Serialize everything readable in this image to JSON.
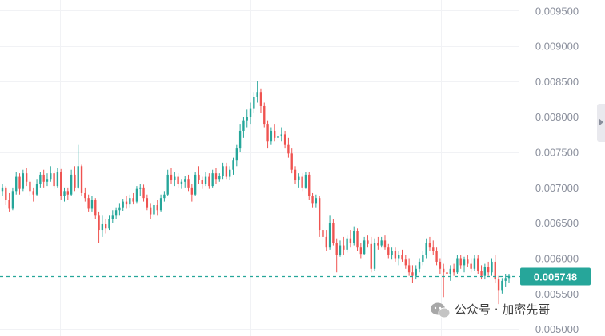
{
  "chart_data": {
    "type": "candlestick",
    "ylim": [
      0.0049,
      0.00965
    ],
    "y_ticks": [
      "0.009500",
      "0.009000",
      "0.008500",
      "0.008000",
      "0.007500",
      "0.007000",
      "0.006500",
      "0.006000",
      "0.005500",
      "0.005000"
    ],
    "last_price": 0.005748,
    "last_price_label": "0.005748",
    "up_color": "#26a69a",
    "down_color": "#ef5350",
    "price_line_color": "#26a69a",
    "grid": true,
    "candles": [
      [
        0.00695,
        0.00705,
        0.00688,
        0.007
      ],
      [
        0.007,
        0.00702,
        0.00675,
        0.00682
      ],
      [
        0.00682,
        0.00692,
        0.00665,
        0.0067
      ],
      [
        0.0067,
        0.007,
        0.00668,
        0.00695
      ],
      [
        0.00695,
        0.00722,
        0.0069,
        0.00715
      ],
      [
        0.00715,
        0.0072,
        0.0069,
        0.00698
      ],
      [
        0.00698,
        0.00725,
        0.00695,
        0.0072
      ],
      [
        0.0072,
        0.00728,
        0.00702,
        0.00708
      ],
      [
        0.00708,
        0.00712,
        0.00688,
        0.00695
      ],
      [
        0.00695,
        0.007,
        0.0068,
        0.0069
      ],
      [
        0.0069,
        0.00712,
        0.00688,
        0.00705
      ],
      [
        0.00705,
        0.00722,
        0.007,
        0.00718
      ],
      [
        0.00718,
        0.00725,
        0.007,
        0.00708
      ],
      [
        0.00708,
        0.0072,
        0.00702,
        0.00712
      ],
      [
        0.00712,
        0.0073,
        0.00708,
        0.0072
      ],
      [
        0.0072,
        0.00724,
        0.00698,
        0.00702
      ],
      [
        0.00702,
        0.00728,
        0.007,
        0.00722
      ],
      [
        0.00722,
        0.00726,
        0.00682,
        0.00688
      ],
      [
        0.00688,
        0.007,
        0.0068,
        0.00695
      ],
      [
        0.00695,
        0.007,
        0.00682,
        0.0069
      ],
      [
        0.0069,
        0.00725,
        0.00688,
        0.00718
      ],
      [
        0.00718,
        0.0073,
        0.00695,
        0.007
      ],
      [
        0.007,
        0.0076,
        0.00698,
        0.0073
      ],
      [
        0.0073,
        0.00732,
        0.00688,
        0.00692
      ],
      [
        0.00692,
        0.007,
        0.0068,
        0.00685
      ],
      [
        0.00685,
        0.0069,
        0.00665,
        0.0067
      ],
      [
        0.0067,
        0.00688,
        0.00665,
        0.00682
      ],
      [
        0.00682,
        0.00685,
        0.00655,
        0.0066
      ],
      [
        0.0066,
        0.00665,
        0.00622,
        0.0064
      ],
      [
        0.0064,
        0.0066,
        0.0063,
        0.00648
      ],
      [
        0.00648,
        0.00655,
        0.00635,
        0.00642
      ],
      [
        0.00642,
        0.0066,
        0.0064,
        0.00655
      ],
      [
        0.00655,
        0.00668,
        0.0065,
        0.0066
      ],
      [
        0.0066,
        0.00672,
        0.00655,
        0.00668
      ],
      [
        0.00668,
        0.00678,
        0.0066,
        0.00672
      ],
      [
        0.00672,
        0.00684,
        0.00666,
        0.0068
      ],
      [
        0.0068,
        0.00688,
        0.0067,
        0.00676
      ],
      [
        0.00676,
        0.0069,
        0.00672,
        0.00685
      ],
      [
        0.00685,
        0.00692,
        0.00676,
        0.0068
      ],
      [
        0.0068,
        0.00702,
        0.00678,
        0.00698
      ],
      [
        0.00698,
        0.00705,
        0.00688,
        0.007
      ],
      [
        0.007,
        0.00704,
        0.0068,
        0.00685
      ],
      [
        0.00685,
        0.0069,
        0.00668,
        0.00672
      ],
      [
        0.00672,
        0.00678,
        0.00655,
        0.00662
      ],
      [
        0.00662,
        0.0068,
        0.00658,
        0.00675
      ],
      [
        0.00675,
        0.00682,
        0.0066,
        0.00668
      ],
      [
        0.00668,
        0.0069,
        0.00665,
        0.00685
      ],
      [
        0.00685,
        0.00695,
        0.0068,
        0.0069
      ],
      [
        0.0069,
        0.00725,
        0.00688,
        0.00718
      ],
      [
        0.00718,
        0.00728,
        0.00705,
        0.0071
      ],
      [
        0.0071,
        0.00722,
        0.00702,
        0.00715
      ],
      [
        0.00715,
        0.0072,
        0.007,
        0.00705
      ],
      [
        0.00705,
        0.00712,
        0.00698,
        0.00708
      ],
      [
        0.00708,
        0.00716,
        0.007,
        0.00712
      ],
      [
        0.00712,
        0.00718,
        0.00695,
        0.007
      ],
      [
        0.007,
        0.00705,
        0.0068,
        0.0069
      ],
      [
        0.0069,
        0.00722,
        0.00688,
        0.00718
      ],
      [
        0.00718,
        0.0073,
        0.00705,
        0.0071
      ],
      [
        0.0071,
        0.00715,
        0.00698,
        0.00705
      ],
      [
        0.00705,
        0.00722,
        0.00702,
        0.00715
      ],
      [
        0.00715,
        0.0072,
        0.00698,
        0.00702
      ],
      [
        0.00702,
        0.00725,
        0.007,
        0.0072
      ],
      [
        0.0072,
        0.00728,
        0.00705,
        0.00712
      ],
      [
        0.00712,
        0.0072,
        0.00708,
        0.00716
      ],
      [
        0.00716,
        0.00735,
        0.00712,
        0.0073
      ],
      [
        0.0073,
        0.00735,
        0.00712,
        0.00715
      ],
      [
        0.00715,
        0.0073,
        0.0071,
        0.00725
      ],
      [
        0.00725,
        0.00742,
        0.00718,
        0.00738
      ],
      [
        0.00738,
        0.0076,
        0.0073,
        0.00755
      ],
      [
        0.00755,
        0.0079,
        0.0075,
        0.0078
      ],
      [
        0.0078,
        0.008,
        0.0077,
        0.00795
      ],
      [
        0.00795,
        0.0081,
        0.00785,
        0.008
      ],
      [
        0.008,
        0.0082,
        0.0079,
        0.00812
      ],
      [
        0.00812,
        0.00835,
        0.00805,
        0.00828
      ],
      [
        0.00828,
        0.0085,
        0.0082,
        0.00835
      ],
      [
        0.00835,
        0.0084,
        0.00805,
        0.00815
      ],
      [
        0.00815,
        0.0082,
        0.00785,
        0.0079
      ],
      [
        0.0079,
        0.00795,
        0.00755,
        0.00765
      ],
      [
        0.00765,
        0.00785,
        0.0076,
        0.0078
      ],
      [
        0.0078,
        0.0079,
        0.00765,
        0.0077
      ],
      [
        0.0077,
        0.0078,
        0.00755,
        0.00772
      ],
      [
        0.00772,
        0.00785,
        0.00765,
        0.00775
      ],
      [
        0.00775,
        0.0078,
        0.00755,
        0.0076
      ],
      [
        0.0076,
        0.0077,
        0.00742,
        0.00748
      ],
      [
        0.00748,
        0.00755,
        0.0072,
        0.00725
      ],
      [
        0.00725,
        0.0073,
        0.00705,
        0.0071
      ],
      [
        0.0071,
        0.0072,
        0.007,
        0.00715
      ],
      [
        0.00715,
        0.0072,
        0.00695,
        0.007
      ],
      [
        0.007,
        0.00722,
        0.00698,
        0.00718
      ],
      [
        0.00718,
        0.00722,
        0.00682,
        0.00688
      ],
      [
        0.00688,
        0.00692,
        0.00672,
        0.00678
      ],
      [
        0.00678,
        0.0069,
        0.00672,
        0.00685
      ],
      [
        0.00685,
        0.00688,
        0.0063,
        0.0064
      ],
      [
        0.0064,
        0.00648,
        0.0062,
        0.0063
      ],
      [
        0.0063,
        0.0064,
        0.0061,
        0.00615
      ],
      [
        0.00615,
        0.0066,
        0.00612,
        0.0065
      ],
      [
        0.0065,
        0.00655,
        0.00618,
        0.00622
      ],
      [
        0.00622,
        0.00628,
        0.0058,
        0.00605
      ],
      [
        0.00605,
        0.00625,
        0.00602,
        0.00618
      ],
      [
        0.00618,
        0.0063,
        0.00605,
        0.00612
      ],
      [
        0.00612,
        0.00632,
        0.00608,
        0.00628
      ],
      [
        0.00628,
        0.0064,
        0.00615,
        0.00622
      ],
      [
        0.00622,
        0.00645,
        0.00618,
        0.00638
      ],
      [
        0.00638,
        0.00642,
        0.0061,
        0.00615
      ],
      [
        0.00615,
        0.00622,
        0.006,
        0.00606
      ],
      [
        0.00606,
        0.0063,
        0.00605,
        0.00625
      ],
      [
        0.00625,
        0.00632,
        0.00615,
        0.0062
      ],
      [
        0.0062,
        0.0063,
        0.0058,
        0.00585
      ],
      [
        0.00585,
        0.00628,
        0.00582,
        0.00622
      ],
      [
        0.00622,
        0.0063,
        0.00612,
        0.00618
      ],
      [
        0.00618,
        0.0063,
        0.00615,
        0.00625
      ],
      [
        0.00625,
        0.00632,
        0.00612,
        0.00615
      ],
      [
        0.00615,
        0.0062,
        0.006,
        0.00605
      ],
      [
        0.00605,
        0.00615,
        0.00598,
        0.0061
      ],
      [
        0.0061,
        0.00615,
        0.00595,
        0.006
      ],
      [
        0.006,
        0.0061,
        0.0059,
        0.00605
      ],
      [
        0.00605,
        0.00612,
        0.00595,
        0.00598
      ],
      [
        0.00598,
        0.00605,
        0.00585,
        0.0059
      ],
      [
        0.0059,
        0.006,
        0.00575,
        0.0058
      ],
      [
        0.0058,
        0.0059,
        0.00565,
        0.00575
      ],
      [
        0.00575,
        0.0059,
        0.0057,
        0.00585
      ],
      [
        0.00585,
        0.006,
        0.0058,
        0.00595
      ],
      [
        0.00595,
        0.0061,
        0.0059,
        0.00605
      ],
      [
        0.00605,
        0.00628,
        0.006,
        0.00622
      ],
      [
        0.00622,
        0.0063,
        0.0061,
        0.00615
      ],
      [
        0.00615,
        0.00625,
        0.00605,
        0.0061
      ],
      [
        0.0061,
        0.00615,
        0.0059,
        0.00595
      ],
      [
        0.00595,
        0.006,
        0.00578,
        0.00585
      ],
      [
        0.00585,
        0.00592,
        0.00545,
        0.0058
      ],
      [
        0.0058,
        0.0059,
        0.0057,
        0.00578
      ],
      [
        0.00578,
        0.0059,
        0.00568,
        0.00585
      ],
      [
        0.00585,
        0.00592,
        0.00575,
        0.0058
      ],
      [
        0.0058,
        0.00605,
        0.00578,
        0.006
      ],
      [
        0.006,
        0.00605,
        0.00585,
        0.0059
      ],
      [
        0.0059,
        0.00602,
        0.0058,
        0.00598
      ],
      [
        0.00598,
        0.00605,
        0.00588,
        0.00592
      ],
      [
        0.00592,
        0.006,
        0.0058,
        0.00585
      ],
      [
        0.00585,
        0.00605,
        0.00582,
        0.006
      ],
      [
        0.006,
        0.00605,
        0.00578,
        0.00582
      ],
      [
        0.00582,
        0.0059,
        0.0057,
        0.00575
      ],
      [
        0.00575,
        0.00592,
        0.0057,
        0.00588
      ],
      [
        0.00588,
        0.00595,
        0.00575,
        0.0058
      ],
      [
        0.0058,
        0.006,
        0.00575,
        0.00595
      ],
      [
        0.00595,
        0.00605,
        0.00565,
        0.0057
      ],
      [
        0.0057,
        0.00575,
        0.00535,
        0.00555
      ],
      [
        0.00555,
        0.00572,
        0.0055,
        0.00568
      ],
      [
        0.00568,
        0.00578,
        0.0056,
        0.00572
      ],
      [
        0.00572,
        0.00578,
        0.00565,
        0.00575
      ]
    ]
  },
  "watermark": {
    "text": "公众号 · 加密先哥",
    "icon": "wechat-icon"
  }
}
